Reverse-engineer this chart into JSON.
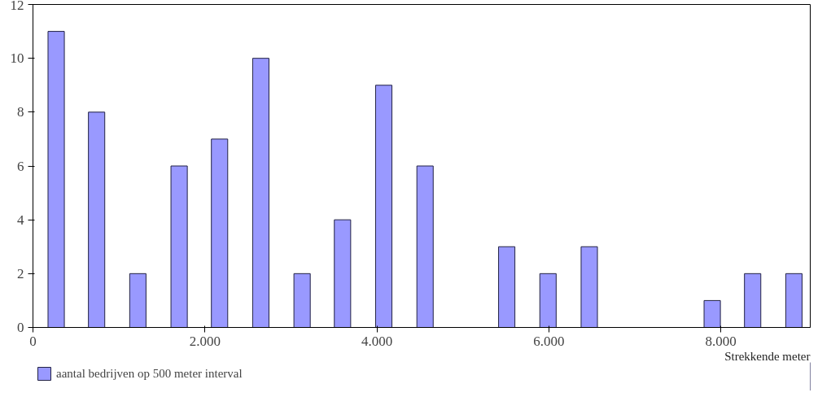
{
  "chart_data": {
    "type": "bar",
    "xlabel": "Strekkende meter",
    "x": [
      270,
      740,
      1220,
      1700,
      2170,
      2650,
      3130,
      3600,
      4080,
      4560,
      5510,
      5990,
      6470,
      7900,
      8370,
      8850
    ],
    "series": [
      {
        "name": "aantal bedrijven op 500 meter interval",
        "color": "#9999ff",
        "values": [
          11,
          8,
          2,
          6,
          7,
          10,
          2,
          4,
          9,
          6,
          3,
          2,
          3,
          1,
          2,
          2
        ]
      }
    ],
    "xlim": [
      0,
      9040
    ],
    "xticks": [
      {
        "value": 0,
        "label": "0"
      },
      {
        "value": 2000,
        "label": "2.000"
      },
      {
        "value": 4000,
        "label": "4.000"
      },
      {
        "value": 6000,
        "label": "6.000"
      },
      {
        "value": 8000,
        "label": "8.000"
      }
    ],
    "ylim": [
      0,
      12
    ],
    "yticks": [
      0,
      2,
      4,
      6,
      8,
      10,
      12
    ],
    "grid": false,
    "legend": "bottom left"
  }
}
